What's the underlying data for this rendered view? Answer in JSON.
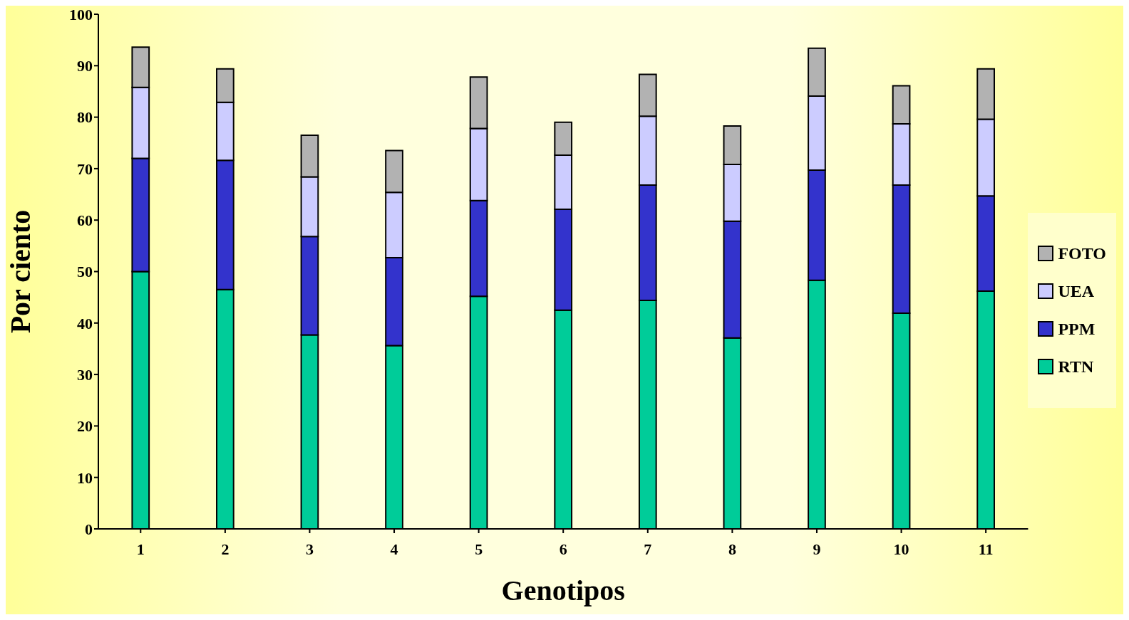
{
  "chart_data": {
    "type": "bar",
    "stacked": true,
    "xlabel": "Genotipos",
    "ylabel": "Por ciento",
    "categories": [
      "1",
      "2",
      "3",
      "4",
      "5",
      "6",
      "7",
      "8",
      "9",
      "10",
      "11"
    ],
    "series": [
      {
        "name": "RTN",
        "color": "#00cc99",
        "values": [
          50,
          46.5,
          37.7,
          35.6,
          45.2,
          42.5,
          44.4,
          37.1,
          48.3,
          41.9,
          46.2
        ]
      },
      {
        "name": "PPM",
        "color": "#3333cc",
        "values": [
          22,
          25.1,
          19.1,
          17.1,
          18.6,
          19.6,
          22.4,
          22.7,
          21.4,
          24.9,
          18.5
        ]
      },
      {
        "name": "UEA",
        "color": "#ccccff",
        "values": [
          13.8,
          11.3,
          11.6,
          12.7,
          14,
          10.5,
          13.4,
          11,
          14.4,
          11.9,
          14.9
        ]
      },
      {
        "name": "FOTO",
        "color": "#b2b2b2",
        "values": [
          7.8,
          6.5,
          8.1,
          8.1,
          10,
          6.4,
          8.1,
          7.5,
          9.3,
          7.4,
          9.8
        ]
      }
    ],
    "ylim": [
      0,
      100
    ],
    "yticks": [
      0,
      10,
      20,
      30,
      40,
      50,
      60,
      70,
      80,
      90,
      100
    ],
    "grid": false,
    "legend": "right"
  }
}
